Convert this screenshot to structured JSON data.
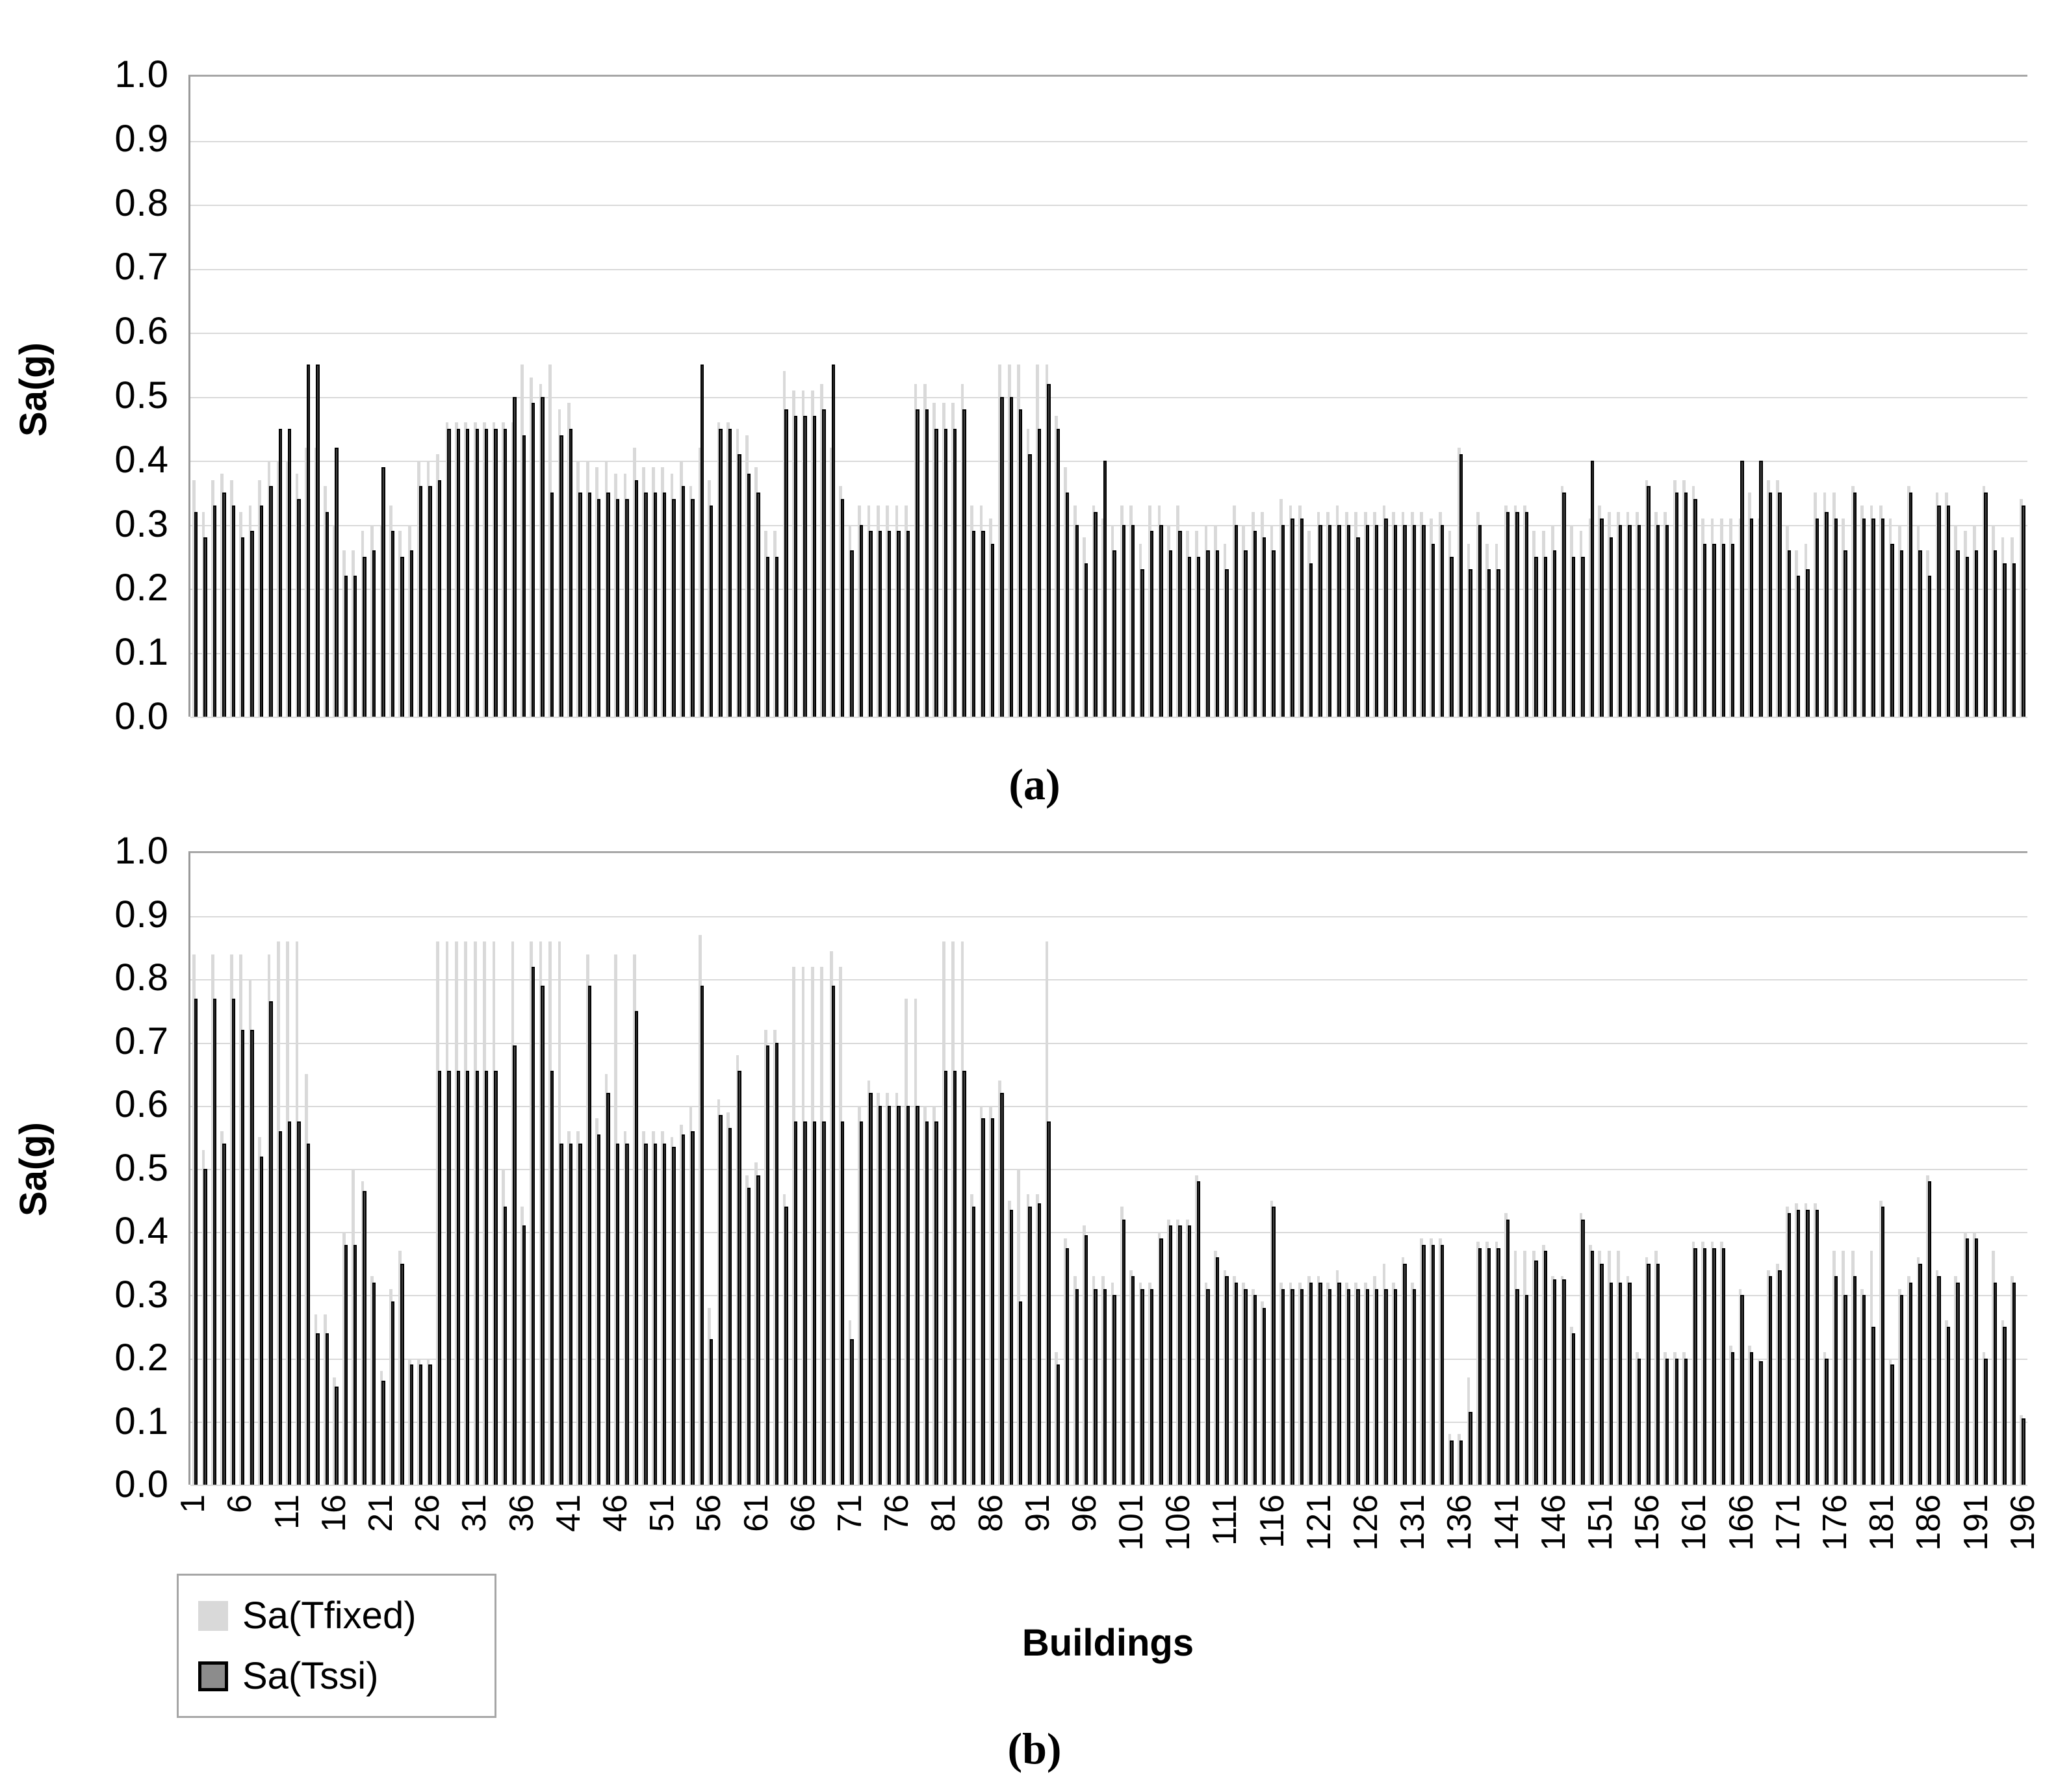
{
  "figure": {
    "y_axis_label": "Sa(g)",
    "x_axis_label": "Buildings",
    "y_tick_labels": [
      "1.0",
      "0.9",
      "0.8",
      "0.7",
      "0.6",
      "0.5",
      "0.4",
      "0.3",
      "0.2",
      "0.1",
      "0.0"
    ],
    "x_tick_labels": [
      "1",
      "6",
      "11",
      "16",
      "21",
      "26",
      "31",
      "36",
      "41",
      "46",
      "51",
      "56",
      "61",
      "66",
      "71",
      "76",
      "81",
      "86",
      "91",
      "96",
      "101",
      "106",
      "111",
      "116",
      "121",
      "126",
      "131",
      "136",
      "141",
      "146",
      "151",
      "156",
      "161",
      "166",
      "171",
      "176",
      "181",
      "186",
      "191",
      "196"
    ],
    "panels": [
      {
        "caption": "(a)"
      },
      {
        "caption": "(b)"
      }
    ],
    "legend": {
      "items": [
        {
          "label": "Sa(Tfixed)",
          "swatch_color": "#d9d9d9",
          "swatch_border": "none"
        },
        {
          "label": "Sa(Tssi)",
          "swatch_color": "#8c8c8c",
          "swatch_border": "#000000"
        }
      ]
    },
    "colors": {
      "tfixed_bar": "#d9d9d9",
      "tssi_bar_fill": "#3f3f3f",
      "tssi_bar_border": "#000000",
      "gridline": "#d9d9d9"
    }
  },
  "chart_data": [
    {
      "type": "bar",
      "panel": "a",
      "title": "",
      "xlabel": "Buildings",
      "ylabel": "Sa(g)",
      "ylim": [
        0.0,
        1.0
      ],
      "ytick_step": 0.1,
      "x_range": [
        1,
        196
      ],
      "grid": true,
      "legend_position": "bottom-left",
      "series": [
        {
          "name": "Sa(Tfixed)",
          "values": [
            0.37,
            0.32,
            0.37,
            0.38,
            0.37,
            0.32,
            0.33,
            0.37,
            0.4,
            0.4,
            0.4,
            0.38,
            0.42,
            0.42,
            0.36,
            0.3,
            0.26,
            0.26,
            0.29,
            0.3,
            0.3,
            0.33,
            0.29,
            0.3,
            0.4,
            0.4,
            0.41,
            0.46,
            0.46,
            0.46,
            0.46,
            0.46,
            0.46,
            0.46,
            0.46,
            0.55,
            0.53,
            0.52,
            0.55,
            0.48,
            0.49,
            0.4,
            0.4,
            0.39,
            0.4,
            0.38,
            0.38,
            0.42,
            0.39,
            0.39,
            0.39,
            0.38,
            0.4,
            0.36,
            0.42,
            0.37,
            0.46,
            0.46,
            0.45,
            0.44,
            0.39,
            0.29,
            0.29,
            0.54,
            0.51,
            0.51,
            0.51,
            0.52,
            0.42,
            0.36,
            0.3,
            0.33,
            0.33,
            0.33,
            0.33,
            0.33,
            0.33,
            0.52,
            0.52,
            0.49,
            0.49,
            0.49,
            0.52,
            0.33,
            0.33,
            0.31,
            0.55,
            0.55,
            0.55,
            0.45,
            0.55,
            0.55,
            0.47,
            0.39,
            0.33,
            0.28,
            0.33,
            0.31,
            0.3,
            0.33,
            0.33,
            0.27,
            0.33,
            0.33,
            0.3,
            0.33,
            0.29,
            0.29,
            0.3,
            0.3,
            0.27,
            0.33,
            0.3,
            0.32,
            0.32,
            0.3,
            0.34,
            0.33,
            0.33,
            0.29,
            0.32,
            0.32,
            0.33,
            0.32,
            0.32,
            0.32,
            0.32,
            0.33,
            0.32,
            0.32,
            0.32,
            0.32,
            0.31,
            0.32,
            0.29,
            0.42,
            0.27,
            0.32,
            0.27,
            0.27,
            0.33,
            0.33,
            0.33,
            0.29,
            0.29,
            0.3,
            0.36,
            0.3,
            0.29,
            0.31,
            0.33,
            0.32,
            0.32,
            0.32,
            0.32,
            0.37,
            0.32,
            0.32,
            0.37,
            0.37,
            0.36,
            0.31,
            0.31,
            0.31,
            0.31,
            0.31,
            0.35,
            0.31,
            0.37,
            0.37,
            0.3,
            0.26,
            0.27,
            0.35,
            0.35,
            0.35,
            0.31,
            0.36,
            0.33,
            0.33,
            0.33,
            0.31,
            0.3,
            0.36,
            0.3,
            0.26,
            0.35,
            0.35,
            0.3,
            0.29,
            0.3,
            0.36,
            0.3,
            0.28,
            0.28,
            0.34
          ]
        },
        {
          "name": "Sa(Tssi)",
          "values": [
            0.32,
            0.28,
            0.33,
            0.35,
            0.33,
            0.28,
            0.29,
            0.33,
            0.36,
            0.45,
            0.45,
            0.34,
            0.55,
            0.55,
            0.32,
            0.42,
            0.22,
            0.22,
            0.25,
            0.26,
            0.39,
            0.29,
            0.25,
            0.26,
            0.36,
            0.36,
            0.37,
            0.45,
            0.45,
            0.45,
            0.45,
            0.45,
            0.45,
            0.45,
            0.5,
            0.44,
            0.49,
            0.5,
            0.35,
            0.44,
            0.45,
            0.35,
            0.35,
            0.34,
            0.35,
            0.34,
            0.34,
            0.37,
            0.35,
            0.35,
            0.35,
            0.34,
            0.36,
            0.34,
            0.55,
            0.33,
            0.45,
            0.45,
            0.41,
            0.38,
            0.35,
            0.25,
            0.25,
            0.48,
            0.47,
            0.47,
            0.47,
            0.48,
            0.55,
            0.34,
            0.26,
            0.3,
            0.29,
            0.29,
            0.29,
            0.29,
            0.29,
            0.48,
            0.48,
            0.45,
            0.45,
            0.45,
            0.48,
            0.29,
            0.29,
            0.27,
            0.5,
            0.5,
            0.48,
            0.41,
            0.45,
            0.52,
            0.45,
            0.35,
            0.3,
            0.24,
            0.32,
            0.4,
            0.26,
            0.3,
            0.3,
            0.23,
            0.29,
            0.3,
            0.26,
            0.29,
            0.25,
            0.25,
            0.26,
            0.26,
            0.23,
            0.3,
            0.26,
            0.29,
            0.28,
            0.26,
            0.3,
            0.31,
            0.31,
            0.24,
            0.3,
            0.3,
            0.3,
            0.3,
            0.28,
            0.3,
            0.3,
            0.31,
            0.3,
            0.3,
            0.3,
            0.3,
            0.27,
            0.3,
            0.25,
            0.41,
            0.23,
            0.3,
            0.23,
            0.23,
            0.32,
            0.32,
            0.32,
            0.25,
            0.25,
            0.26,
            0.35,
            0.25,
            0.25,
            0.4,
            0.31,
            0.28,
            0.3,
            0.3,
            0.3,
            0.36,
            0.3,
            0.3,
            0.35,
            0.35,
            0.34,
            0.27,
            0.27,
            0.27,
            0.27,
            0.4,
            0.31,
            0.4,
            0.35,
            0.35,
            0.26,
            0.22,
            0.23,
            0.31,
            0.32,
            0.31,
            0.26,
            0.35,
            0.31,
            0.31,
            0.31,
            0.27,
            0.26,
            0.35,
            0.26,
            0.22,
            0.33,
            0.33,
            0.26,
            0.25,
            0.26,
            0.35,
            0.26,
            0.24,
            0.24,
            0.33
          ]
        }
      ]
    },
    {
      "type": "bar",
      "panel": "b",
      "title": "",
      "xlabel": "Buildings",
      "ylabel": "Sa(g)",
      "ylim": [
        0.0,
        1.0
      ],
      "ytick_step": 0.1,
      "x_range": [
        1,
        196
      ],
      "grid": true,
      "legend_position": "bottom-left",
      "series": [
        {
          "name": "Sa(Tfixed)",
          "values": [
            0.84,
            0.53,
            0.84,
            0.56,
            0.84,
            0.84,
            0.8,
            0.55,
            0.84,
            0.86,
            0.86,
            0.86,
            0.65,
            0.27,
            0.27,
            0.17,
            0.4,
            0.5,
            0.48,
            0.33,
            0.18,
            0.31,
            0.37,
            0.2,
            0.2,
            0.2,
            0.86,
            0.86,
            0.86,
            0.86,
            0.86,
            0.86,
            0.86,
            0.5,
            0.86,
            0.44,
            0.86,
            0.86,
            0.86,
            0.86,
            0.56,
            0.56,
            0.84,
            0.58,
            0.65,
            0.84,
            0.56,
            0.84,
            0.56,
            0.56,
            0.56,
            0.55,
            0.57,
            0.6,
            0.87,
            0.28,
            0.61,
            0.59,
            0.68,
            0.49,
            0.51,
            0.72,
            0.72,
            0.46,
            0.82,
            0.82,
            0.82,
            0.82,
            0.845,
            0.82,
            0.26,
            0.6,
            0.64,
            0.62,
            0.62,
            0.62,
            0.77,
            0.77,
            0.6,
            0.6,
            0.86,
            0.86,
            0.86,
            0.46,
            0.6,
            0.6,
            0.64,
            0.45,
            0.5,
            0.46,
            0.46,
            0.86,
            0.21,
            0.39,
            0.33,
            0.41,
            0.33,
            0.33,
            0.32,
            0.44,
            0.34,
            0.32,
            0.32,
            0.4,
            0.42,
            0.42,
            0.42,
            0.49,
            0.32,
            0.37,
            0.34,
            0.33,
            0.32,
            0.31,
            0.29,
            0.45,
            0.32,
            0.32,
            0.32,
            0.33,
            0.33,
            0.32,
            0.34,
            0.32,
            0.32,
            0.32,
            0.33,
            0.35,
            0.32,
            0.36,
            0.32,
            0.39,
            0.39,
            0.39,
            0.08,
            0.08,
            0.17,
            0.385,
            0.385,
            0.385,
            0.43,
            0.37,
            0.37,
            0.37,
            0.38,
            0.33,
            0.33,
            0.25,
            0.43,
            0.38,
            0.37,
            0.37,
            0.37,
            0.33,
            0.21,
            0.36,
            0.37,
            0.21,
            0.21,
            0.21,
            0.385,
            0.385,
            0.385,
            0.385,
            0.22,
            0.31,
            0.22,
            0.2,
            0.34,
            0.35,
            0.44,
            0.445,
            0.445,
            0.445,
            0.21,
            0.37,
            0.37,
            0.37,
            0.31,
            0.37,
            0.45,
            0.2,
            0.31,
            0.33,
            0.36,
            0.49,
            0.34,
            0.26,
            0.33,
            0.4,
            0.4,
            0.21,
            0.37,
            0.26,
            0.33,
            0.11
          ]
        },
        {
          "name": "Sa(Tssi)",
          "values": [
            0.77,
            0.5,
            0.77,
            0.54,
            0.77,
            0.72,
            0.72,
            0.52,
            0.765,
            0.56,
            0.575,
            0.575,
            0.54,
            0.24,
            0.24,
            0.155,
            0.38,
            0.38,
            0.465,
            0.32,
            0.165,
            0.29,
            0.35,
            0.19,
            0.19,
            0.19,
            0.655,
            0.655,
            0.655,
            0.655,
            0.655,
            0.655,
            0.655,
            0.44,
            0.695,
            0.41,
            0.82,
            0.79,
            0.655,
            0.54,
            0.54,
            0.54,
            0.79,
            0.555,
            0.62,
            0.54,
            0.54,
            0.75,
            0.54,
            0.54,
            0.54,
            0.535,
            0.555,
            0.56,
            0.79,
            0.23,
            0.585,
            0.565,
            0.655,
            0.47,
            0.49,
            0.695,
            0.7,
            0.44,
            0.575,
            0.575,
            0.575,
            0.575,
            0.79,
            0.575,
            0.23,
            0.575,
            0.62,
            0.6,
            0.6,
            0.6,
            0.6,
            0.6,
            0.575,
            0.575,
            0.655,
            0.655,
            0.655,
            0.44,
            0.58,
            0.58,
            0.62,
            0.435,
            0.29,
            0.44,
            0.445,
            0.575,
            0.19,
            0.375,
            0.31,
            0.395,
            0.31,
            0.31,
            0.3,
            0.42,
            0.33,
            0.31,
            0.31,
            0.39,
            0.41,
            0.41,
            0.41,
            0.48,
            0.31,
            0.36,
            0.33,
            0.32,
            0.31,
            0.3,
            0.28,
            0.44,
            0.31,
            0.31,
            0.31,
            0.32,
            0.32,
            0.31,
            0.32,
            0.31,
            0.31,
            0.31,
            0.31,
            0.31,
            0.31,
            0.35,
            0.31,
            0.38,
            0.38,
            0.38,
            0.07,
            0.07,
            0.115,
            0.375,
            0.375,
            0.375,
            0.42,
            0.31,
            0.3,
            0.355,
            0.37,
            0.325,
            0.325,
            0.24,
            0.42,
            0.37,
            0.35,
            0.32,
            0.32,
            0.32,
            0.2,
            0.35,
            0.35,
            0.2,
            0.2,
            0.2,
            0.375,
            0.375,
            0.375,
            0.375,
            0.21,
            0.3,
            0.21,
            0.195,
            0.33,
            0.34,
            0.43,
            0.435,
            0.435,
            0.435,
            0.2,
            0.33,
            0.3,
            0.33,
            0.3,
            0.25,
            0.44,
            0.19,
            0.3,
            0.32,
            0.35,
            0.48,
            0.33,
            0.25,
            0.32,
            0.39,
            0.39,
            0.2,
            0.32,
            0.25,
            0.32,
            0.105
          ]
        }
      ]
    }
  ]
}
